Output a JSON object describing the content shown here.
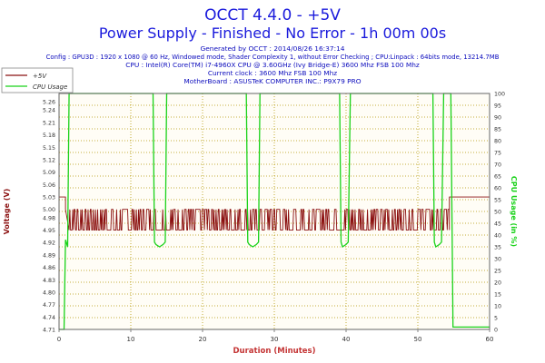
{
  "header": {
    "title": "OCCT 4.4.0 - +5V",
    "subtitle": "Power Supply - Finished - No Error - 1h 00m 00s",
    "info_lines": [
      "Generated by OCCT : 2014/08/26 16:37:14",
      "Config : GPU3D : 1920 x 1080 @ 60 Hz, Windowed mode, Shader Complexity 1, without Error Checking ; CPU:Linpack : 64bits mode, 13214.7MB",
      "CPU : Intel(R) Core(TM) i7-4960X CPU @ 3.60GHz (Ivy Bridge-E) 3600 Mhz FSB 100 Mhz",
      "Current clock : 3600 Mhz FSB 100 Mhz",
      "MotherBoard : ASUSTeK COMPUTER INC.: P9X79 PRO"
    ]
  },
  "colors": {
    "title": "#1a1adc",
    "info": "#0c0cbd",
    "voltage": "#8b1010",
    "cpu": "#19d219",
    "xlabel": "#c43434",
    "grid": "#b49600"
  },
  "chart_data": {
    "type": "line",
    "xlabel": "Duration (Minutes)",
    "ylabel": "Voltage (V)",
    "y2label": "CPU Usage (in %)",
    "xlim": [
      0,
      60
    ],
    "ylim": [
      4.71,
      5.28
    ],
    "y2lim": [
      0,
      100
    ],
    "x_ticks": [
      0,
      10,
      20,
      30,
      40,
      50,
      60
    ],
    "y_ticks": [
      4.71,
      4.74,
      4.77,
      4.8,
      4.83,
      4.86,
      4.89,
      4.92,
      4.95,
      4.98,
      5.0,
      5.03,
      5.06,
      5.09,
      5.12,
      5.15,
      5.18,
      5.21,
      5.24,
      5.26
    ],
    "y2_ticks": [
      0,
      5,
      10,
      15,
      20,
      25,
      30,
      35,
      40,
      45,
      50,
      55,
      60,
      65,
      70,
      75,
      80,
      85,
      90,
      95,
      100
    ],
    "grid": true,
    "legend_position": "top-left",
    "series": [
      {
        "name": "+5V",
        "axis": "left",
        "x": [
          0,
          0.9,
          0.9,
          1.4,
          54.4,
          54.4,
          60
        ],
        "y": [
          5.03,
          5.03,
          5.0,
          4.95,
          4.95,
          5.03,
          5.03
        ],
        "noise": {
          "x_start": 1.4,
          "x_end": 54.4,
          "low": 4.95,
          "high": 5.0,
          "note": "dense oscillation between 4.95 V and 5.00 V"
        }
      },
      {
        "name": "CPU Usage",
        "axis": "right",
        "x": [
          0,
          0.7,
          0.9,
          1.2,
          1.4,
          1.6,
          13.1,
          13.3,
          13.5,
          14.0,
          14.5,
          14.8,
          15.0,
          26.1,
          26.3,
          26.5,
          27.0,
          27.5,
          27.8,
          28.0,
          39.1,
          39.3,
          39.5,
          40.0,
          40.3,
          40.6,
          52.1,
          52.3,
          52.5,
          53.0,
          53.3,
          53.6,
          54.6,
          54.9,
          60
        ],
        "y": [
          0,
          0,
          38,
          35,
          100,
          100,
          100,
          37,
          36,
          35,
          36,
          37,
          100,
          100,
          37,
          36,
          35,
          36,
          37,
          100,
          100,
          37,
          35,
          36,
          37,
          100,
          100,
          37,
          35,
          36,
          37,
          100,
          100,
          1,
          1
        ]
      }
    ]
  }
}
